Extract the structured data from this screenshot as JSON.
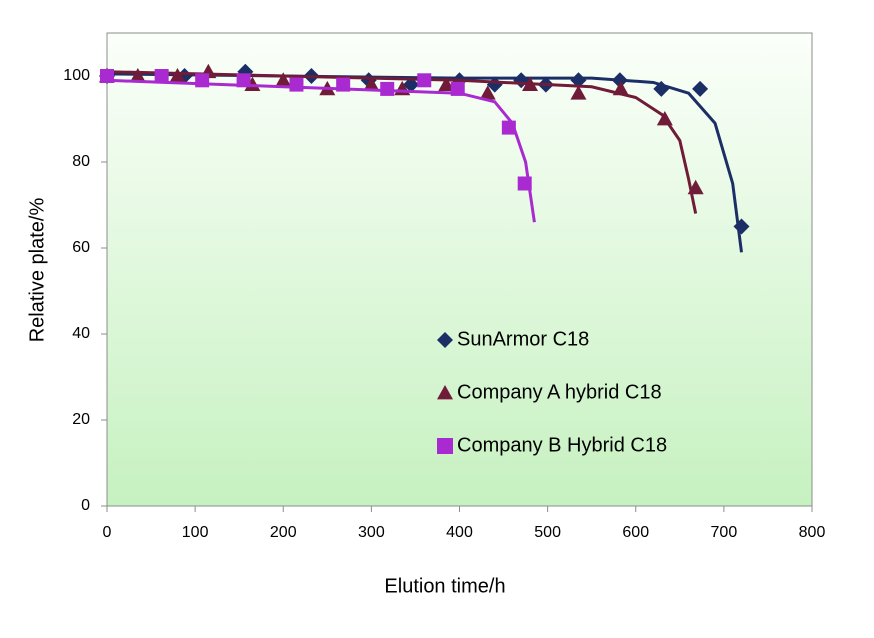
{
  "chart_data": {
    "type": "scatter",
    "x_label": "Elution time/h",
    "y_label": "Relative plate/%",
    "xlim": [
      0,
      800
    ],
    "xticks": [
      0,
      100,
      200,
      300,
      400,
      500,
      600,
      700,
      800
    ],
    "ylim": [
      0,
      110
    ],
    "yticks": [
      0,
      20,
      40,
      60,
      80,
      100
    ],
    "legend_position": "center",
    "series": [
      {
        "name": "SunArmor C18",
        "color": "#1b2f66",
        "marker": "diamond",
        "x": [
          0,
          88,
          157,
          232,
          297,
          345,
          400,
          440,
          470,
          498,
          535,
          582,
          629,
          673,
          720
        ],
        "values": [
          100,
          100,
          101,
          100,
          99,
          98,
          99,
          98,
          99,
          98,
          99,
          99,
          97,
          97,
          65
        ],
        "trend_x": [
          0,
          200,
          400,
          550,
          620,
          660,
          690,
          710,
          720
        ],
        "trend_values": [
          100.5,
          100,
          99.5,
          99.5,
          98.5,
          96,
          89,
          75,
          59
        ]
      },
      {
        "name": "Company A hybrid C18",
        "color": "#701c38",
        "marker": "triangle",
        "x": [
          0,
          35,
          80,
          115,
          165,
          200,
          250,
          300,
          335,
          385,
          432,
          480,
          535,
          583,
          633,
          668
        ],
        "values": [
          100,
          100,
          100,
          101,
          98,
          99,
          97,
          98,
          97,
          98,
          96,
          98,
          96,
          97,
          90,
          74
        ],
        "trend_x": [
          0,
          200,
          400,
          550,
          600,
          630,
          650,
          660,
          668
        ],
        "trend_values": [
          101,
          100,
          99,
          97.5,
          95,
          91,
          85,
          76,
          68
        ]
      },
      {
        "name": "Company B Hybrid C18",
        "color": "#a82ad0",
        "marker": "square",
        "x": [
          0,
          62,
          108,
          155,
          215,
          268,
          318,
          360,
          398,
          456,
          474
        ],
        "values": [
          100,
          100,
          99,
          99,
          98,
          98,
          97,
          99,
          97,
          88,
          75
        ],
        "trend_x": [
          0,
          200,
          400,
          440,
          460,
          475,
          485
        ],
        "trend_values": [
          99,
          97.5,
          96,
          94,
          89,
          80,
          66
        ]
      }
    ]
  }
}
